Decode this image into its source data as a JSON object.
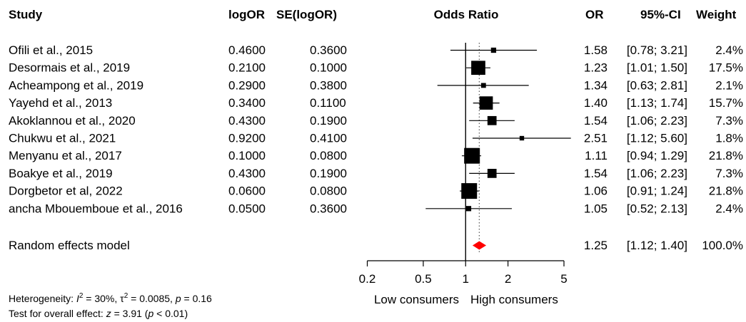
{
  "headers": {
    "study": "Study",
    "logor": "logOR",
    "selogor": "SE(logOR)",
    "plot": "Odds Ratio",
    "or": "OR",
    "ci": "95%-CI",
    "weight": "Weight"
  },
  "studies": [
    {
      "name": "Ofili et al., 2015",
      "logor": "0.4600",
      "se": "0.3600",
      "or_text": "1.58",
      "ci_text": "[0.78; 3.21]",
      "weight_text": "2.4%"
    },
    {
      "name": "Desormais et al., 2019",
      "logor": "0.2100",
      "se": "0.1000",
      "or_text": "1.23",
      "ci_text": "[1.01; 1.50]",
      "weight_text": "17.5%"
    },
    {
      "name": "Acheampong et al., 2019",
      "logor": "0.2900",
      "se": "0.3800",
      "or_text": "1.34",
      "ci_text": "[0.63; 2.81]",
      "weight_text": "2.1%"
    },
    {
      "name": "Yayehd et al., 2013",
      "logor": "0.3400",
      "se": "0.1100",
      "or_text": "1.40",
      "ci_text": "[1.13; 1.74]",
      "weight_text": "15.7%"
    },
    {
      "name": "Akoklannou et al., 2020",
      "logor": "0.4300",
      "se": "0.1900",
      "or_text": "1.54",
      "ci_text": "[1.06; 2.23]",
      "weight_text": "7.3%"
    },
    {
      "name": "Chukwu et al., 2021",
      "logor": "0.9200",
      "se": "0.4100",
      "or_text": "2.51",
      "ci_text": "[1.12; 5.60]",
      "weight_text": "1.8%"
    },
    {
      "name": "Menyanu et al., 2017",
      "logor": "0.1000",
      "se": "0.0800",
      "or_text": "1.11",
      "ci_text": "[0.94; 1.29]",
      "weight_text": "21.8%"
    },
    {
      "name": "Boakye et al., 2019",
      "logor": "0.4300",
      "se": "0.1900",
      "or_text": "1.54",
      "ci_text": "[1.06; 2.23]",
      "weight_text": "7.3%"
    },
    {
      "name": "Dorgbetor et al, 2022",
      "logor": "0.0600",
      "se": "0.0800",
      "or_text": "1.06",
      "ci_text": "[0.91; 1.24]",
      "weight_text": "21.8%"
    },
    {
      "name": "ancha Mbouemboue et al., 2016",
      "logor": "0.0500",
      "se": "0.3600",
      "or_text": "1.05",
      "ci_text": "[0.52; 2.13]",
      "weight_text": "2.4%"
    }
  ],
  "pooled": {
    "name": "Random effects model",
    "or_text": "1.25",
    "ci_text": "[1.12; 1.40]",
    "weight_text": "100.0%"
  },
  "axis_labels": {
    "left": "Low consumers",
    "right": "High consumers"
  },
  "heterogeneity": {
    "prefix": "Heterogeneity: ",
    "i2": "= 30%, ",
    "tau2": "= 0.0085, ",
    "p": "= 0.16"
  },
  "overall": {
    "prefix": "Test for overall effect: ",
    "z": "= 3.91 (",
    "p": "< 0.01)"
  },
  "colors": {
    "diamond": "#ff0000",
    "ink": "#000000",
    "pooled_line": "#555555"
  },
  "chart_data": {
    "type": "forest",
    "scale": "log",
    "xlim": [
      0.2,
      5
    ],
    "ticks": [
      0.2,
      0.5,
      1,
      2,
      5
    ],
    "tick_labels": [
      "0.2",
      "0.5",
      "1",
      "2",
      "5"
    ],
    "null_value": 1,
    "studies": [
      {
        "or": 1.58,
        "lo": 0.78,
        "hi": 3.21,
        "weight": 2.4
      },
      {
        "or": 1.23,
        "lo": 1.01,
        "hi": 1.5,
        "weight": 17.5
      },
      {
        "or": 1.34,
        "lo": 0.63,
        "hi": 2.81,
        "weight": 2.1
      },
      {
        "or": 1.4,
        "lo": 1.13,
        "hi": 1.74,
        "weight": 15.7
      },
      {
        "or": 1.54,
        "lo": 1.06,
        "hi": 2.23,
        "weight": 7.3
      },
      {
        "or": 2.51,
        "lo": 1.12,
        "hi": 5.6,
        "weight": 1.8
      },
      {
        "or": 1.11,
        "lo": 0.94,
        "hi": 1.29,
        "weight": 21.8
      },
      {
        "or": 1.54,
        "lo": 1.06,
        "hi": 2.23,
        "weight": 7.3
      },
      {
        "or": 1.06,
        "lo": 0.91,
        "hi": 1.24,
        "weight": 21.8
      },
      {
        "or": 1.05,
        "lo": 0.52,
        "hi": 2.13,
        "weight": 2.4
      }
    ],
    "pooled": {
      "or": 1.25,
      "lo": 1.12,
      "hi": 1.4
    }
  }
}
